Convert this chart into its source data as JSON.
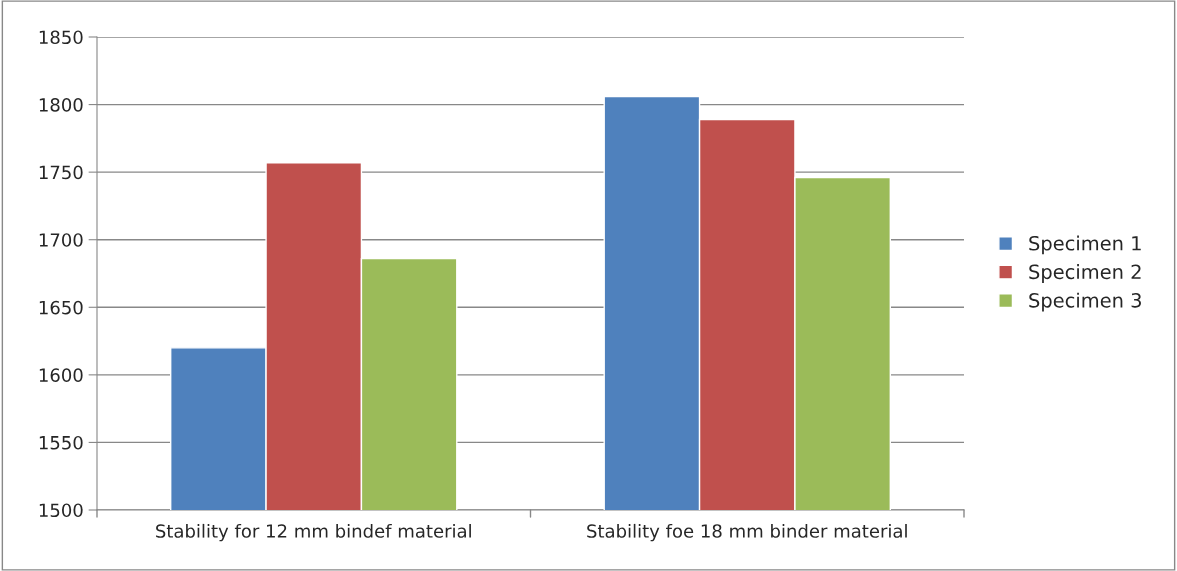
{
  "chart_data": {
    "type": "bar",
    "categories": [
      "Stability for 12 mm bindef material",
      "Stability foe 18 mm binder material"
    ],
    "series": [
      {
        "name": "Specimen 1",
        "color": "#4f81bd",
        "values": [
          1620,
          1806
        ]
      },
      {
        "name": "Specimen 2",
        "color": "#c0504d",
        "values": [
          1757,
          1789
        ]
      },
      {
        "name": "Specimen 3",
        "color": "#9bbb59",
        "values": [
          1686,
          1746
        ]
      }
    ],
    "ylim": [
      1500,
      1850
    ],
    "yticks": [
      1500,
      1550,
      1600,
      1650,
      1700,
      1750,
      1800,
      1850
    ],
    "grid": "y",
    "legend": "right"
  }
}
